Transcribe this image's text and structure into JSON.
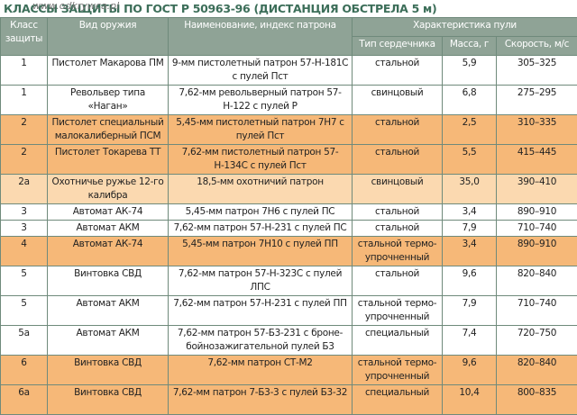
{
  "header": {
    "title": "КЛАССЫ ЗАЩИТЫ ПО ГОСТ Р 50963-96 (ДИСТАНЦИЯ ОБСТРЕЛА 5 м)",
    "watermark": "www.odkrywca.pl"
  },
  "table": {
    "header_color": "#8fa396",
    "columns": [
      "Класс защиты",
      "Вид оружия",
      "Наименование, индекс патрона",
      "Тип сердечника",
      "Масса, г",
      "Скорость, м/с"
    ],
    "group": "Характеристика пули",
    "rows": [
      {
        "color": "#ffffff",
        "cells": [
          "1",
          "Пистолет Макарова ПМ",
          "9-мм пистолетный патрон 57-Н-181С с пулей Пст",
          "стальной",
          "5,9",
          "305–325"
        ]
      },
      {
        "color": "#ffffff",
        "cells": [
          "1",
          "Револьвер типа «Наган»",
          "7,62-мм револьверный патрон 57-Н-122 с пулей Р",
          "свинцовый",
          "6,8",
          "275–295"
        ]
      },
      {
        "color": "#f6b878",
        "cells": [
          "2",
          "Пистолет специальный малокалиберный ПСМ",
          "5,45-мм пистолетный патрон 7Н7 с пулей Пст",
          "стальной",
          "2,5",
          "310–335"
        ]
      },
      {
        "color": "#f6b878",
        "cells": [
          "2",
          "Пистолет Токарева ТТ",
          "7,62-мм пистолетный патрон 57-Н-134С с пулей Пст",
          "стальной",
          "5,5",
          "415–445"
        ]
      },
      {
        "color": "#fbd9b0",
        "cells": [
          "2а",
          "Охотничье ружье 12-го калибра",
          "18,5-мм охотничий патрон",
          "свинцовый",
          "35,0",
          "390–410"
        ]
      },
      {
        "color": "#ffffff",
        "cells": [
          "3",
          "Автомат АК-74",
          "5,45-мм патрон 7Н6 с пулей ПС",
          "стальной",
          "3,4",
          "890–910"
        ]
      },
      {
        "color": "#ffffff",
        "cells": [
          "3",
          "Автомат АКМ",
          "7,62-мм патрон 57-Н-231 с пулей ПС",
          "стальной",
          "7,9",
          "710–740"
        ]
      },
      {
        "color": "#f6b878",
        "cells": [
          "4",
          "Автомат АК-74",
          "5,45-мм патрон 7Н10 с пулей ПП",
          "стальной термо-упрочненный",
          "3,4",
          "890–910"
        ]
      },
      {
        "color": "#ffffff",
        "cells": [
          "5",
          "Винтовка СВД",
          "7,62-мм патрон 57-Н-323С с пулей ЛПС",
          "стальной",
          "9,6",
          "820–840"
        ]
      },
      {
        "color": "#ffffff",
        "cells": [
          "5",
          "Автомат АКМ",
          "7,62-мм патрон 57-Н-231 с пулей ПП",
          "стальной термо-упрочненный",
          "7,9",
          "710–740"
        ]
      },
      {
        "color": "#ffffff",
        "cells": [
          "5а",
          "Автомат АКМ",
          "7,62-мм патрон 57-Б3-231 с броне-бойнозажигательной пулей Б3",
          "специальный",
          "7,4",
          "720–750"
        ]
      },
      {
        "color": "#f6b878",
        "cells": [
          "6",
          "Винтовка СВД",
          "7,62-мм патрон СТ-М2",
          "стальной термо-упрочненный",
          "9,6",
          "820–840"
        ]
      },
      {
        "color": "#f6b878",
        "cells": [
          "6а",
          "Винтовка СВД",
          "7,62-мм патрон 7-Б3-3 с пулей Б3-32",
          "специальный",
          "10,4",
          "800–835"
        ]
      }
    ]
  }
}
